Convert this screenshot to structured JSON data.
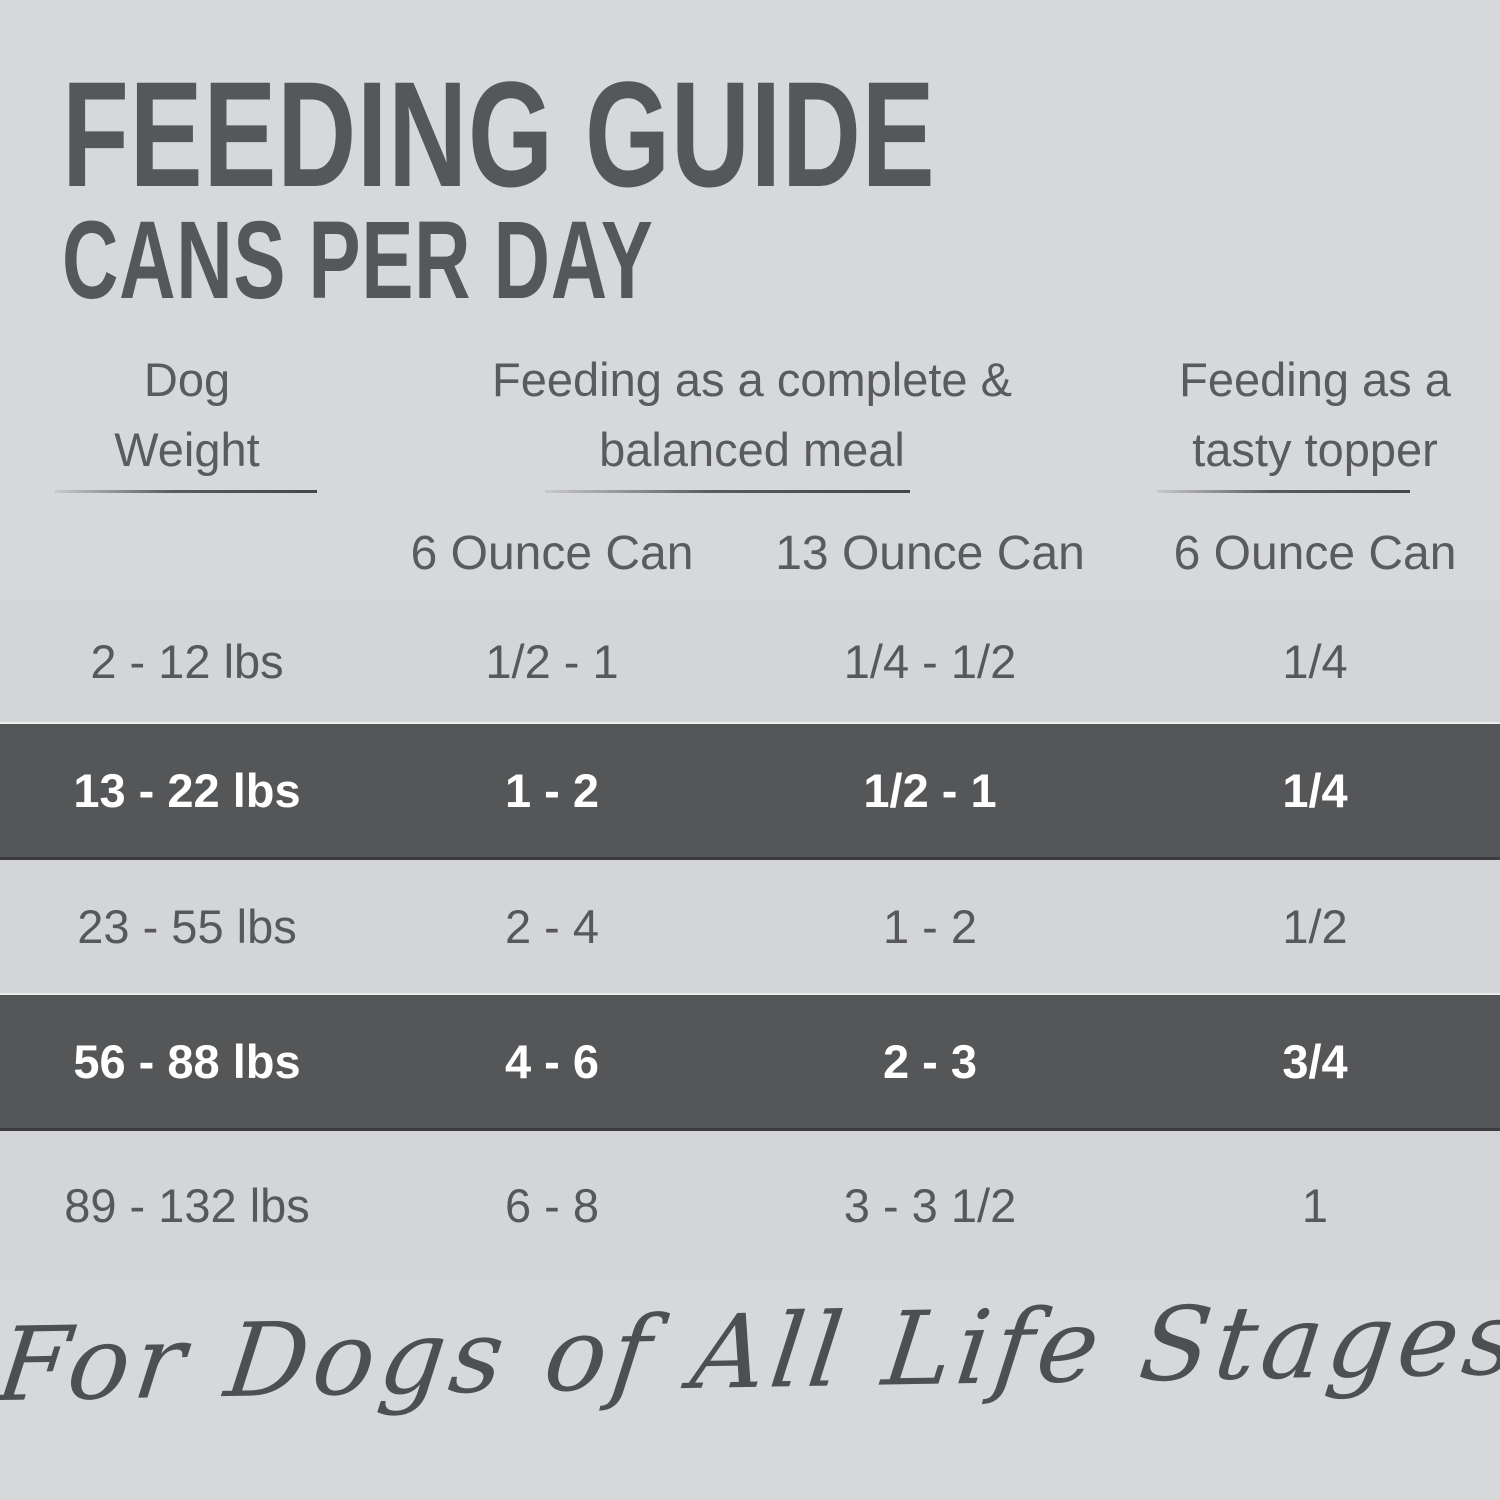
{
  "title": "FEEDING GUIDE",
  "subtitle": "CANS PER DAY",
  "header": {
    "col_weight_line1": "Dog",
    "col_weight_line2": "Weight",
    "col_meal_line1": "Feeding as a complete &",
    "col_meal_line2": "balanced meal",
    "col_topper_line1": "Feeding as a",
    "col_topper_line2": "tasty topper",
    "sub_meal_6oz": "6 Ounce Can",
    "sub_meal_13oz": "13 Ounce Can",
    "sub_topper_6oz": "6 Ounce Can"
  },
  "chart_data": {
    "type": "table",
    "title": "FEEDING GUIDE",
    "subtitle": "CANS PER DAY",
    "column_groups": [
      "Dog Weight",
      "Feeding as a complete & balanced meal",
      "Feeding as a tasty topper"
    ],
    "columns": [
      "Dog Weight",
      "Complete meal - 6 Ounce Can",
      "Complete meal - 13 Ounce Can",
      "Tasty topper - 6 Ounce Can"
    ],
    "rows": [
      [
        "2 - 12 lbs",
        "1/2 - 1",
        "1/4 - 1/2",
        "1/4"
      ],
      [
        "13 - 22 lbs",
        "1 - 2",
        "1/2 - 1",
        "1/4"
      ],
      [
        "23 - 55 lbs",
        "2 - 4",
        "1 - 2",
        "1/2"
      ],
      [
        "56 - 88 lbs",
        "4 - 6",
        "2 - 3",
        "3/4"
      ],
      [
        "89 - 132 lbs",
        "6 - 8",
        "3 - 3 1/2",
        "1"
      ]
    ],
    "highlighted_rows": [
      1,
      3
    ],
    "footnote": "For Dogs of All Life Stages"
  },
  "footer": "For Dogs of All Life Stages",
  "colors": {
    "background": "#d6d7d8",
    "band": "#555658",
    "text": "#58595b",
    "band_text": "#ffffff"
  }
}
